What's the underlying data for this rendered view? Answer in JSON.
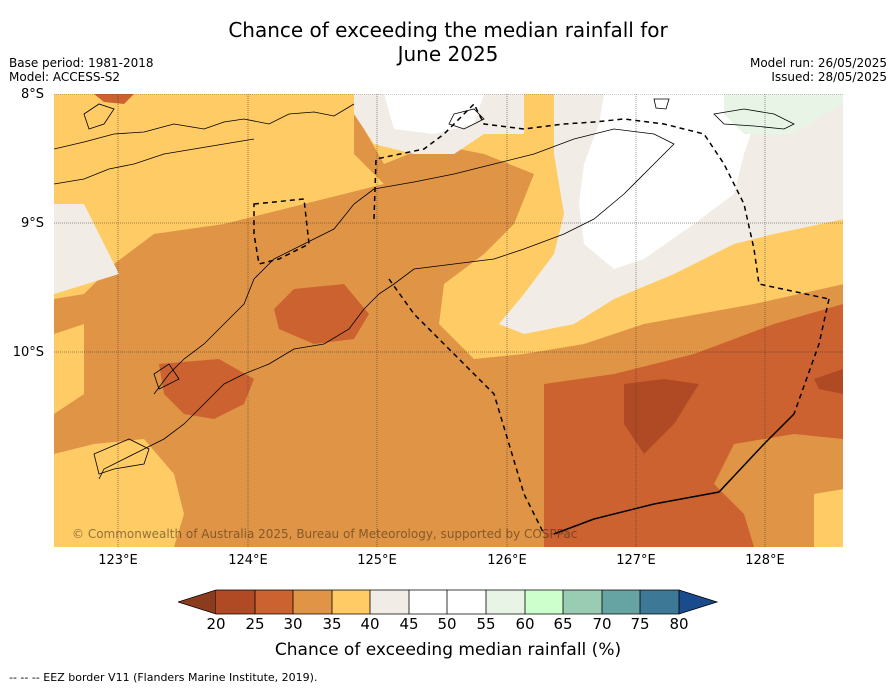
{
  "title": {
    "line1": "Chance of exceeding the median rainfall for",
    "line2": "June 2025"
  },
  "meta": {
    "base_period": "Base period: 1981-2018",
    "model": "Model: ACCESS-S2",
    "model_run": "Model run: 26/05/2025",
    "issued": "Issued: 28/05/2025"
  },
  "axes": {
    "latitudes": [
      "8°S",
      "9°S",
      "10°S"
    ],
    "longitudes": [
      "123°E",
      "124°E",
      "125°E",
      "126°E",
      "127°E",
      "128°E"
    ]
  },
  "copyright": "© Commonwealth of Australia 2025, Bureau of Meteorology, supported by COSPPac",
  "colorbar": {
    "label": "Chance of exceeding median rainfall (%)",
    "ticks": [
      "20",
      "25",
      "30",
      "35",
      "40",
      "45",
      "50",
      "55",
      "60",
      "65",
      "70",
      "75",
      "80"
    ],
    "colors": {
      "below_20": "#8c3c1e",
      "c20_25": "#b04a25",
      "c25_30": "#cc6230",
      "c30_35": "#e09445",
      "c35_40": "#fecb65",
      "c40_45": "#f1ede6",
      "c45_50": "#ffffff",
      "c50_55": "#ffffff",
      "c55_60": "#e8f5e6",
      "c60_65": "#ccffcc",
      "c65_70": "#99ccb3",
      "c70_75": "#66a3a3",
      "c75_80": "#3d7896",
      "above_80": "#1a4b8c"
    }
  },
  "legend_footnote": "--  --  -- EEZ border V11 (Flanders Marine Institute, 2019)."
}
